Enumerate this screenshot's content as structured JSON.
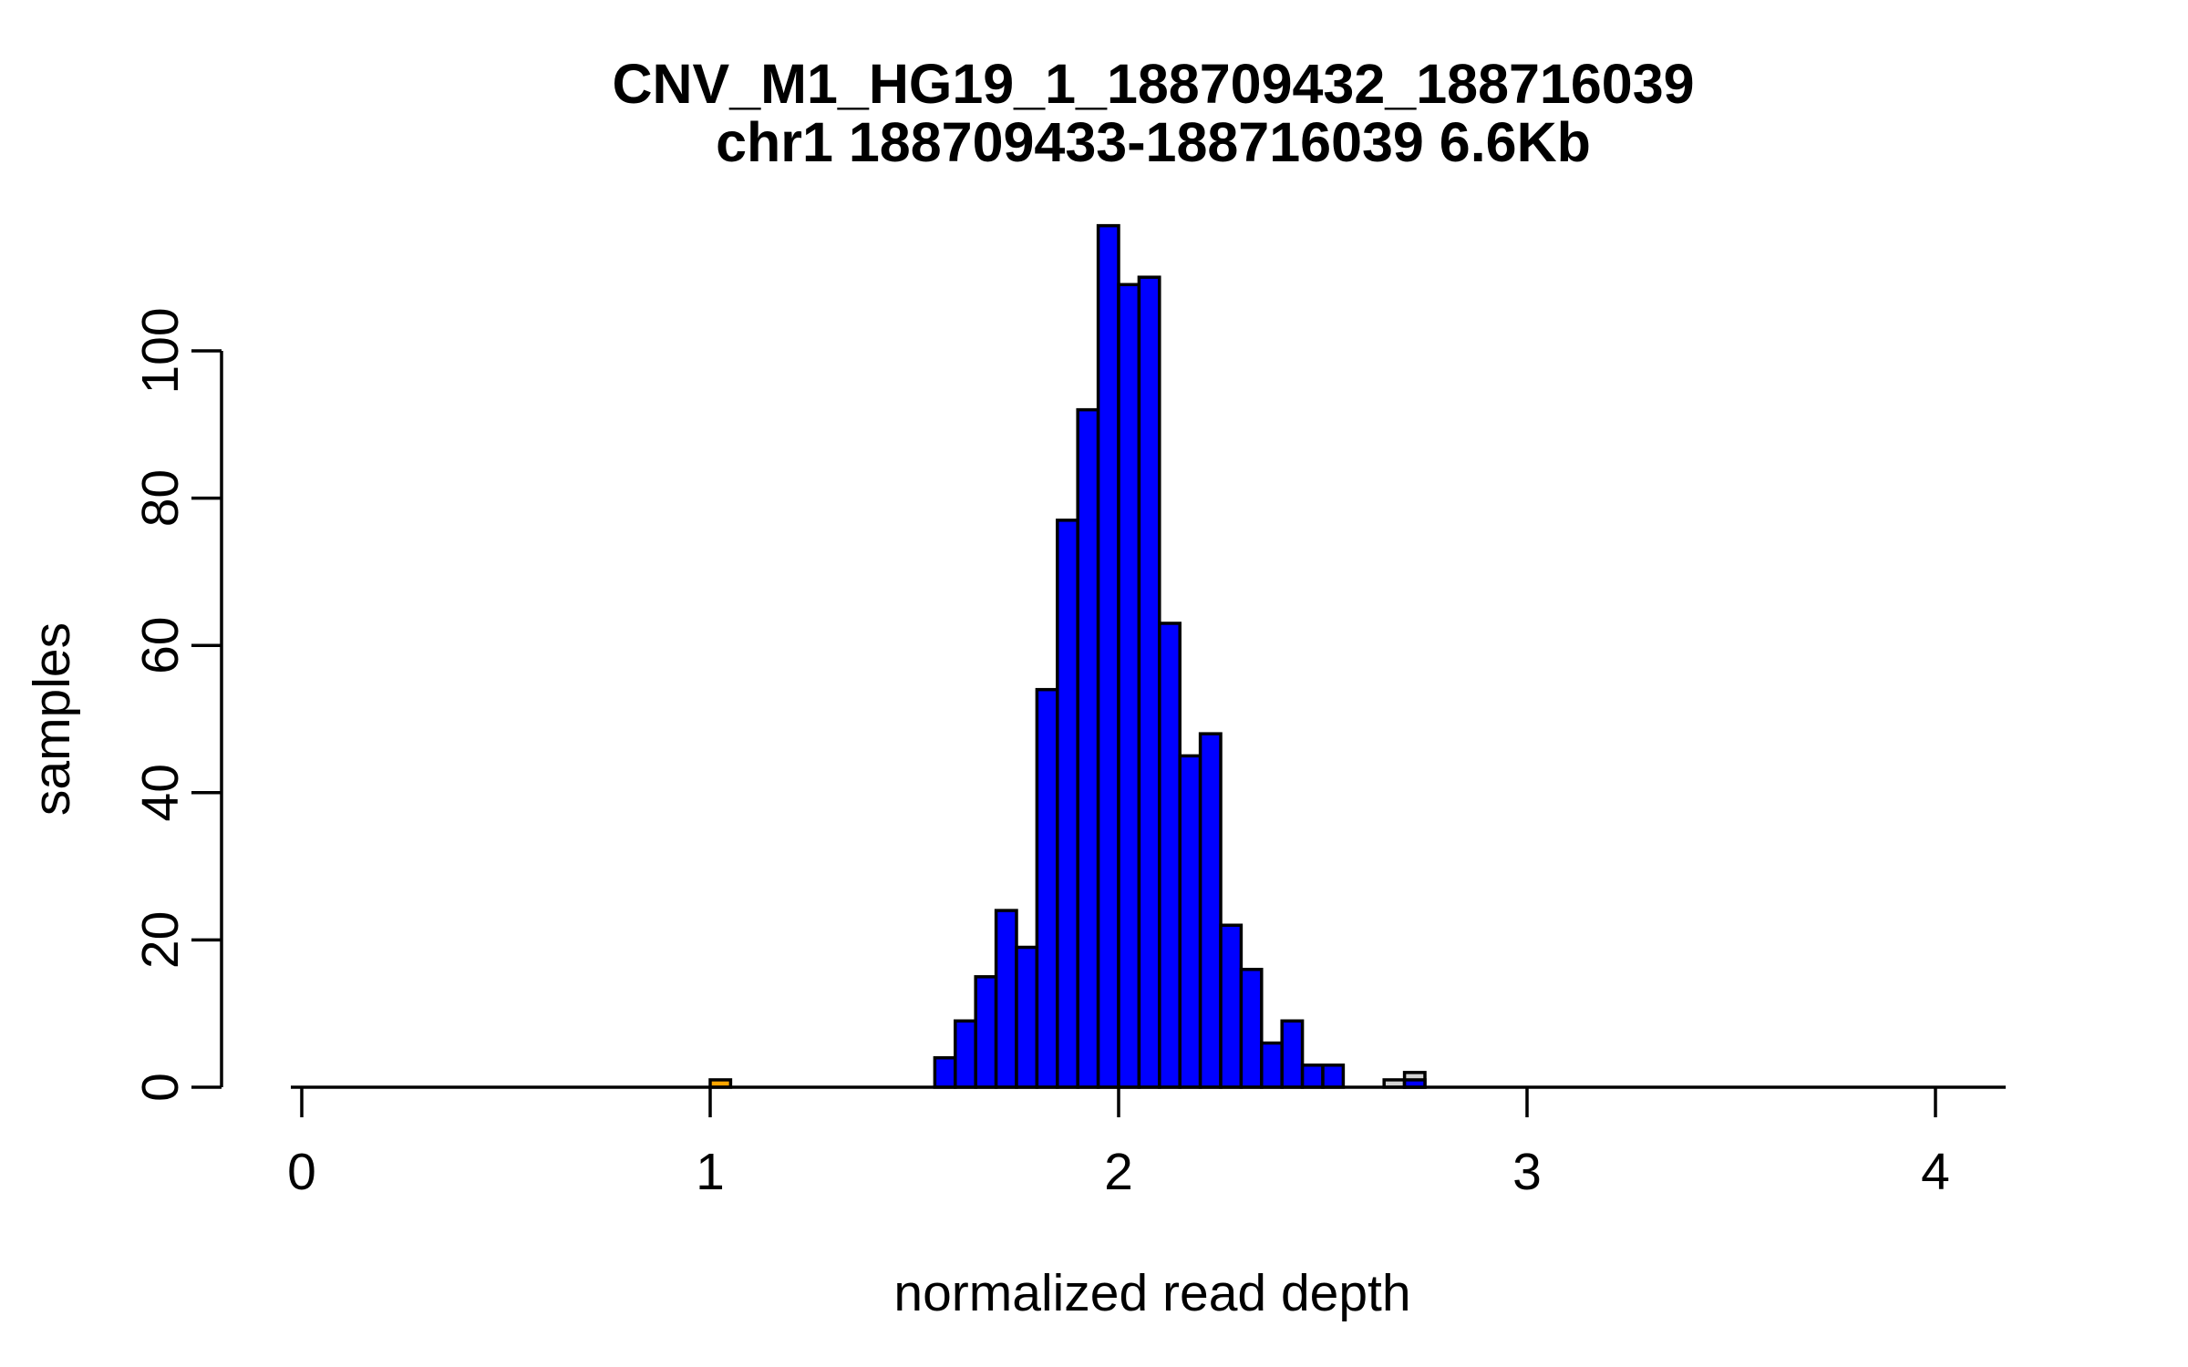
{
  "title": {
    "line1": "CNV_M1_HG19_1_188709432_188716039",
    "line2": "chr1 188709433-188716039 6.6Kb"
  },
  "axes": {
    "x": {
      "label": "normalized read depth",
      "ticks": [
        0,
        1,
        2,
        3,
        4
      ]
    },
    "y": {
      "label": "samples",
      "ticks": [
        0,
        20,
        40,
        60,
        80,
        100
      ]
    }
  },
  "colors": {
    "bar_blue": "#0000FF",
    "bar_orange": "#FFA500",
    "bar_gray": "#D3D3D3",
    "stroke": "#000000",
    "background": "#FFFFFF"
  },
  "chart_data": {
    "type": "bar",
    "subtype": "histogram",
    "title": "CNV_M1_HG19_1_188709432_188716039 / chr1 188709433-188716039 6.6Kb",
    "xlabel": "normalized read depth",
    "ylabel": "samples",
    "xlim": [
      -0.17,
      4.17
    ],
    "ylim": [
      0,
      117
    ],
    "grid": false,
    "legend": false,
    "bin_width": 0.05,
    "series": [
      {
        "name": "gray-overlay-histogram",
        "color": "#D3D3D3",
        "bins": [
          {
            "x": 2.65,
            "count": 1
          },
          {
            "x": 2.7,
            "count": 2
          }
        ]
      },
      {
        "name": "orange-histogram",
        "color": "#FFA500",
        "bins": [
          {
            "x": 1.0,
            "count": 1
          }
        ]
      },
      {
        "name": "blue-histogram",
        "color": "#0000FF",
        "bins": [
          {
            "x": 1.55,
            "count": 4
          },
          {
            "x": 1.6,
            "count": 9
          },
          {
            "x": 1.65,
            "count": 15
          },
          {
            "x": 1.7,
            "count": 24
          },
          {
            "x": 1.75,
            "count": 19
          },
          {
            "x": 1.8,
            "count": 54
          },
          {
            "x": 1.85,
            "count": 77
          },
          {
            "x": 1.9,
            "count": 92
          },
          {
            "x": 1.95,
            "count": 117
          },
          {
            "x": 2.0,
            "count": 109
          },
          {
            "x": 2.05,
            "count": 110
          },
          {
            "x": 2.1,
            "count": 63
          },
          {
            "x": 2.15,
            "count": 45
          },
          {
            "x": 2.2,
            "count": 48
          },
          {
            "x": 2.25,
            "count": 22
          },
          {
            "x": 2.3,
            "count": 16
          },
          {
            "x": 2.35,
            "count": 6
          },
          {
            "x": 2.4,
            "count": 9
          },
          {
            "x": 2.45,
            "count": 3
          },
          {
            "x": 2.5,
            "count": 3
          },
          {
            "x": 2.7,
            "count": 1
          }
        ]
      }
    ]
  }
}
